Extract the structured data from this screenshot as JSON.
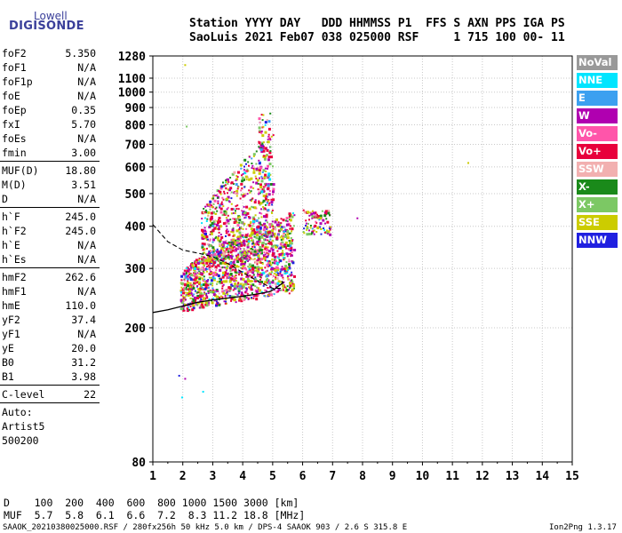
{
  "logo": {
    "top": "Lowell",
    "bottom": "DIGISONDE"
  },
  "header": {
    "line1": "Station YYYY DAY   DDD HHMMSS P1  FFS S AXN PPS IGA PS",
    "line2": "SaoLuis 2021 Feb07 038 025000 RSF     1 715 100 00- 11"
  },
  "params": [
    {
      "group": [
        {
          "k": "foF2",
          "v": "5.350"
        },
        {
          "k": "foF1",
          "v": "N/A"
        },
        {
          "k": "foF1p",
          "v": "N/A"
        },
        {
          "k": "foE",
          "v": "N/A"
        },
        {
          "k": "foEp",
          "v": "0.35"
        },
        {
          "k": "fxI",
          "v": "5.70"
        },
        {
          "k": "foEs",
          "v": "N/A"
        },
        {
          "k": "fmin",
          "v": "3.00"
        }
      ]
    },
    {
      "group": [
        {
          "k": "MUF(D)",
          "v": "18.80"
        },
        {
          "k": "M(D)",
          "v": "3.51"
        },
        {
          "k": "D",
          "v": "N/A"
        }
      ]
    },
    {
      "group": [
        {
          "k": "h`F",
          "v": "245.0"
        },
        {
          "k": "h`F2",
          "v": "245.0"
        },
        {
          "k": "h`E",
          "v": "N/A"
        },
        {
          "k": "h`Es",
          "v": "N/A"
        }
      ]
    },
    {
      "group": [
        {
          "k": "hmF2",
          "v": "262.6"
        },
        {
          "k": "hmF1",
          "v": "N/A"
        },
        {
          "k": "hmE",
          "v": "110.0"
        },
        {
          "k": "yF2",
          "v": "37.4"
        },
        {
          "k": "yF1",
          "v": "N/A"
        },
        {
          "k": "yE",
          "v": "20.0"
        },
        {
          "k": "B0",
          "v": "31.2"
        },
        {
          "k": "B1",
          "v": "3.98"
        }
      ]
    },
    {
      "group": [
        {
          "k": "C-level",
          "v": "22"
        }
      ]
    },
    {
      "group": [
        {
          "k": "Auto:",
          "v": ""
        },
        {
          "k": "Artist5",
          "v": ""
        },
        {
          "k": "500200",
          "v": ""
        }
      ]
    }
  ],
  "legend": [
    {
      "label": "NoVal",
      "color": "#999999"
    },
    {
      "label": "NNE",
      "color": "#00e5ff"
    },
    {
      "label": "E",
      "color": "#3ca0f0"
    },
    {
      "label": "W",
      "color": "#b000b0"
    },
    {
      "label": "Vo-",
      "color": "#ff55aa"
    },
    {
      "label": "Vo+",
      "color": "#e8003c"
    },
    {
      "label": "SSW",
      "color": "#f2b0b0"
    },
    {
      "label": "X-",
      "color": "#1a8a1a"
    },
    {
      "label": "X+",
      "color": "#7cc864"
    },
    {
      "label": "SSE",
      "color": "#cccc00"
    },
    {
      "label": "NNW",
      "color": "#2020e0"
    }
  ],
  "bottom": {
    "d_line": "D    100  200  400  600  800 1000 1500 3000 [km]",
    "muf_line": "MUF  5.7  5.8  6.1  6.6  7.2  8.3 11.2 18.8 [MHz]",
    "footer_left": "SAAOK_20210380025000.RSF / 280fx256h 50 kHz 5.0 km / DPS-4 SAAOK 903 / 2.6 S 315.8 E",
    "footer_right": "Ion2Png 1.3.17"
  },
  "chart_data": {
    "type": "scatter",
    "title": "",
    "xlabel": "",
    "ylabel": "",
    "xlim": [
      1,
      15
    ],
    "ylim": [
      80,
      1280
    ],
    "x_ticks": [
      1,
      2,
      3,
      4,
      5,
      6,
      7,
      8,
      9,
      10,
      11,
      12,
      13,
      14,
      15
    ],
    "y_ticks": [
      80,
      200,
      300,
      400,
      500,
      600,
      700,
      800,
      900,
      1000,
      1100,
      1280
    ],
    "y_scale": "log",
    "grid": true,
    "clusters": [
      {
        "name": "F-trace main band",
        "fmin": 1.9,
        "fmax": 5.7,
        "hmin": 225,
        "hmax": 420,
        "density": "high"
      },
      {
        "name": "F spread upper",
        "fmin": 2.6,
        "fmax": 5.0,
        "hmin": 320,
        "hmax": 760,
        "density": "medium"
      },
      {
        "name": "F spread tall",
        "fmin": 4.5,
        "fmax": 4.9,
        "hmin": 380,
        "hmax": 870,
        "density": "low"
      },
      {
        "name": "oblique echoes",
        "fmin": 6.0,
        "fmax": 6.9,
        "hmin": 380,
        "hmax": 450,
        "density": "low"
      }
    ],
    "outliers": [
      {
        "x": 2.05,
        "y": 1210,
        "color": "#cccc00"
      },
      {
        "x": 2.1,
        "y": 795,
        "color": "#7cc864"
      },
      {
        "x": 11.5,
        "y": 620,
        "color": "#cccc00"
      },
      {
        "x": 7.8,
        "y": 425,
        "color": "#b000b0"
      },
      {
        "x": 2.65,
        "y": 130,
        "color": "#00e5ff"
      },
      {
        "x": 1.85,
        "y": 145,
        "color": "#2020e0"
      },
      {
        "x": 1.95,
        "y": 125,
        "color": "#00e5ff"
      },
      {
        "x": 2.05,
        "y": 142,
        "color": "#b000b0"
      }
    ],
    "profile_solid": [
      [
        1,
        222
      ],
      [
        1.5,
        226
      ],
      [
        2,
        232
      ],
      [
        2.5,
        238
      ],
      [
        3,
        242
      ],
      [
        3.5,
        245
      ],
      [
        4,
        248
      ],
      [
        4.5,
        252
      ],
      [
        4.9,
        256
      ],
      [
        5.1,
        262
      ],
      [
        5.25,
        268
      ],
      [
        5.35,
        272
      ],
      [
        5.3,
        275
      ]
    ],
    "profile_dashed": [
      [
        1,
        405
      ],
      [
        1.5,
        360
      ],
      [
        2,
        340
      ],
      [
        2.5,
        333
      ],
      [
        3,
        325
      ],
      [
        3.5,
        310
      ],
      [
        4,
        292
      ],
      [
        4.5,
        275
      ],
      [
        5,
        262
      ],
      [
        5.35,
        262
      ]
    ]
  }
}
